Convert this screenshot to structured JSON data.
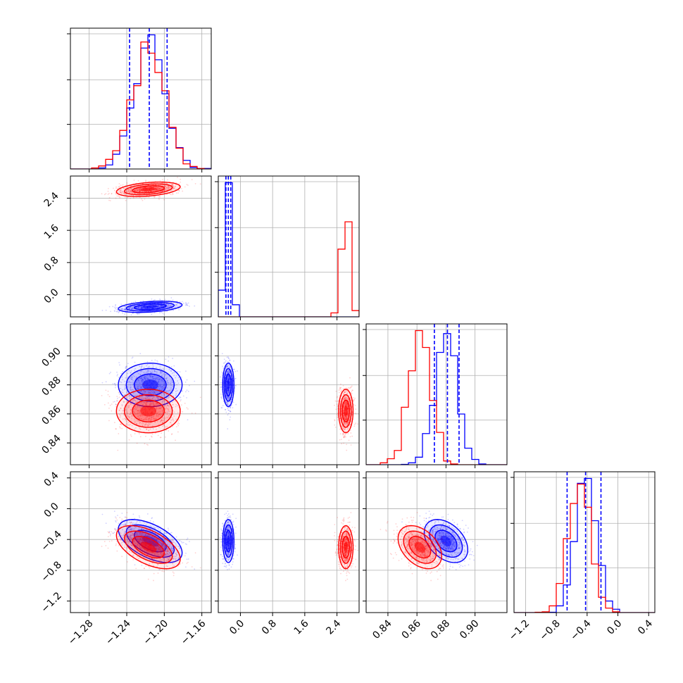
{
  "chart_data": {
    "type": "corner",
    "grid": true,
    "series": [
      {
        "color": "#0000ff",
        "means": [
          -1.215,
          -0.3,
          0.88,
          -0.42
        ],
        "sds": [
          0.017,
          0.07,
          0.0075,
          0.14
        ],
        "corr": {
          "1-0": 0.35,
          "2-0": 0.0,
          "2-1": 0.0,
          "3-0": -0.55,
          "3-1": 0.0,
          "3-2": -0.4
        },
        "quantiles": {
          "0": [
            -1.237,
            -1.216,
            -1.197
          ],
          "1": [
            -0.36,
            -0.3,
            -0.24
          ],
          "2": [
            0.872,
            0.881,
            0.889
          ],
          "3": [
            -0.66,
            -0.42,
            -0.22
          ]
        }
      },
      {
        "color": "#ff0000",
        "means": [
          -1.217,
          2.62,
          0.862,
          -0.5
        ],
        "sds": [
          0.017,
          0.09,
          0.0075,
          0.14
        ],
        "corr": {
          "1-0": 0.35,
          "2-0": 0.0,
          "2-1": 0.0,
          "3-0": -0.55,
          "3-1": 0.0,
          "3-2": -0.4
        },
        "quantiles": {}
      }
    ],
    "axes": [
      {
        "range": [
          -1.3,
          -1.15
        ],
        "ticks": [
          -1.28,
          -1.24,
          -1.2,
          -1.16
        ],
        "tick_labels": [
          "−1.28",
          "−1.24",
          "−1.20",
          "−1.16"
        ]
      },
      {
        "range": [
          -0.55,
          2.95
        ],
        "ticks": [
          0.0,
          0.8,
          1.6,
          2.4
        ],
        "tick_labels": [
          "0.0",
          "0.8",
          "1.6",
          "2.4"
        ]
      },
      {
        "range": [
          0.825,
          0.922
        ],
        "ticks": [
          0.84,
          0.86,
          0.88,
          0.9
        ],
        "tick_labels": [
          "0.84",
          "0.86",
          "0.88",
          "0.90"
        ]
      },
      {
        "range": [
          -1.35,
          0.48
        ],
        "ticks": [
          -1.2,
          -0.8,
          -0.4,
          0.0,
          0.4
        ],
        "tick_labels": [
          "−1.2",
          "−0.8",
          "−0.4",
          "0.0",
          "0.4"
        ]
      }
    ]
  }
}
